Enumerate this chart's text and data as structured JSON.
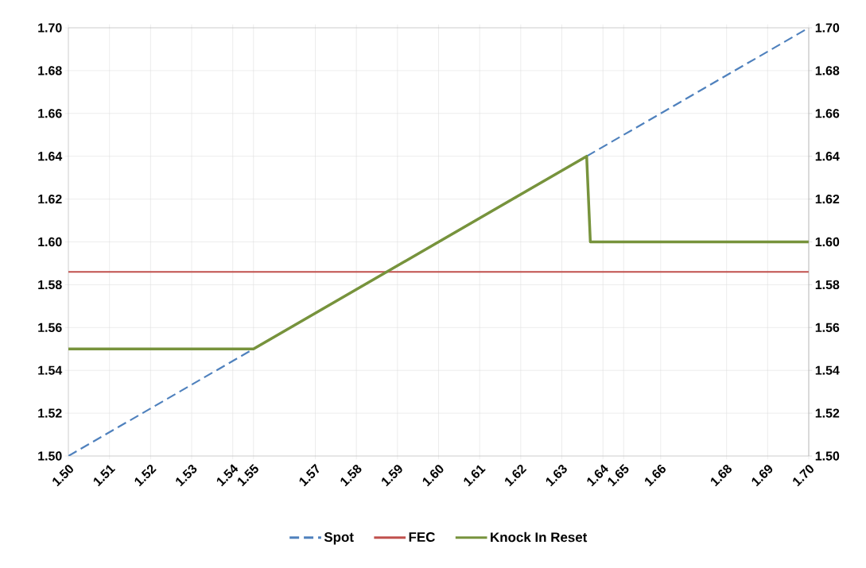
{
  "chart_data": {
    "type": "line",
    "series": [
      {
        "name": "Spot",
        "color": "#4f81bd",
        "line_style": "dashed",
        "x": [
          1.5,
          1.7
        ],
        "values": [
          1.5,
          1.7
        ]
      },
      {
        "name": "FEC",
        "color": "#c0504d",
        "line_style": "solid",
        "x": [
          1.5,
          1.7
        ],
        "values": [
          1.586,
          1.586
        ]
      },
      {
        "name": "Knock In Reset",
        "color": "#77933c",
        "line_style": "solid",
        "x": [
          1.5,
          1.55,
          1.64,
          1.641,
          1.7
        ],
        "values": [
          1.55,
          1.55,
          1.64,
          1.6,
          1.6
        ]
      }
    ],
    "xlim": [
      1.5,
      1.7
    ],
    "xticks": [
      {
        "value": 1.5,
        "label": "1.50"
      },
      {
        "value": 1.5111,
        "label": "1.51"
      },
      {
        "value": 1.5222,
        "label": "1.52"
      },
      {
        "value": 1.5333,
        "label": "1.53"
      },
      {
        "value": 1.5444,
        "label": "1.54"
      },
      {
        "value": 1.55,
        "label": "1.55"
      },
      {
        "value": 1.5667,
        "label": "1.57"
      },
      {
        "value": 1.5778,
        "label": "1.58"
      },
      {
        "value": 1.5889,
        "label": "1.59"
      },
      {
        "value": 1.6,
        "label": "1.60"
      },
      {
        "value": 1.6111,
        "label": "1.61"
      },
      {
        "value": 1.6222,
        "label": "1.62"
      },
      {
        "value": 1.6333,
        "label": "1.63"
      },
      {
        "value": 1.6444,
        "label": "1.64"
      },
      {
        "value": 1.65,
        "label": "1.65"
      },
      {
        "value": 1.66,
        "label": "1.66"
      },
      {
        "value": 1.6778,
        "label": "1.68"
      },
      {
        "value": 1.6889,
        "label": "1.69"
      },
      {
        "value": 1.7,
        "label": "1.70"
      }
    ],
    "ylim": [
      1.5,
      1.7
    ],
    "yticks": [
      {
        "value": 1.5,
        "label": "1.50"
      },
      {
        "value": 1.52,
        "label": "1.52"
      },
      {
        "value": 1.54,
        "label": "1.54"
      },
      {
        "value": 1.56,
        "label": "1.56"
      },
      {
        "value": 1.58,
        "label": "1.58"
      },
      {
        "value": 1.6,
        "label": "1.60"
      },
      {
        "value": 1.62,
        "label": "1.62"
      },
      {
        "value": 1.64,
        "label": "1.64"
      },
      {
        "value": 1.66,
        "label": "1.66"
      },
      {
        "value": 1.68,
        "label": "1.68"
      },
      {
        "value": 1.7,
        "label": "1.70"
      }
    ],
    "y2lim": [
      1.5,
      1.7
    ],
    "y2ticks": [
      {
        "value": 1.5,
        "label": "1.50"
      },
      {
        "value": 1.52,
        "label": "1.52"
      },
      {
        "value": 1.54,
        "label": "1.54"
      },
      {
        "value": 1.56,
        "label": "1.56"
      },
      {
        "value": 1.58,
        "label": "1.58"
      },
      {
        "value": 1.6,
        "label": "1.60"
      },
      {
        "value": 1.62,
        "label": "1.62"
      },
      {
        "value": 1.64,
        "label": "1.64"
      },
      {
        "value": 1.66,
        "label": "1.66"
      },
      {
        "value": 1.68,
        "label": "1.68"
      },
      {
        "value": 1.7,
        "label": "1.70"
      }
    ],
    "grid": true,
    "legend": "bottom"
  }
}
